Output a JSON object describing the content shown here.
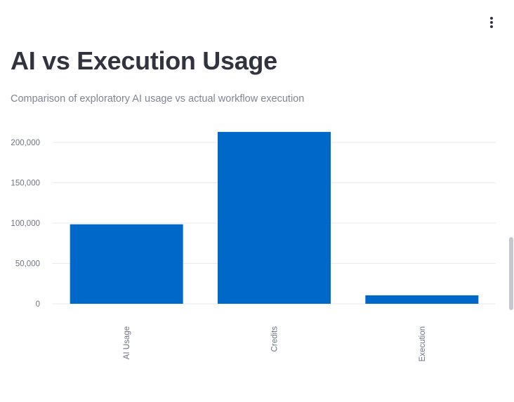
{
  "header": {
    "title": "AI vs Execution Usage",
    "subtitle": "Comparison of exploratory AI usage vs actual workflow execution",
    "menu_icon": "more-vertical-icon"
  },
  "chart_data": {
    "type": "bar",
    "categories": [
      "AI Usage",
      "Credits",
      "Execution"
    ],
    "values": [
      98500,
      213000,
      10500
    ],
    "title": "",
    "xlabel": "",
    "ylabel": "",
    "ylim": [
      0,
      217000
    ],
    "yticks": [
      0,
      50000,
      100000,
      150000,
      200000
    ],
    "ytick_labels": [
      "0",
      "50,000",
      "100,000",
      "150,000",
      "200,000"
    ],
    "grid": true,
    "legend": "none",
    "bar_color": "#0068c9",
    "grid_color": "#e6e9ef"
  }
}
